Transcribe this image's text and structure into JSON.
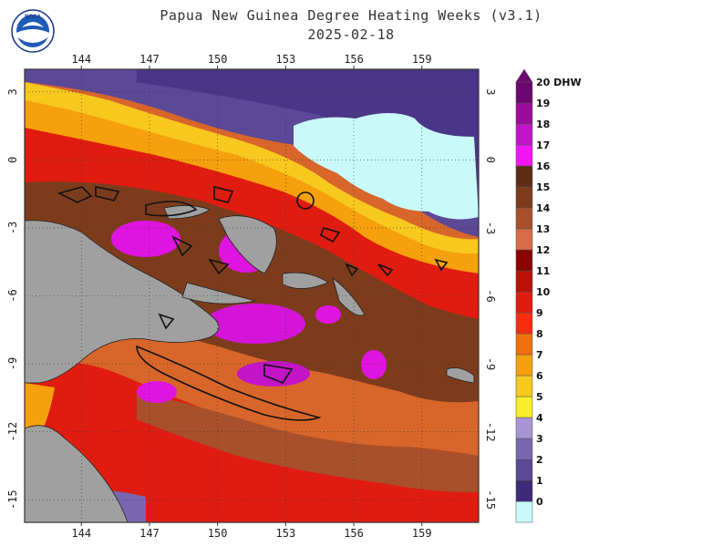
{
  "title_line1": "Papua New Guinea Degree Heating Weeks (v3.1)",
  "title_line2": "2025-02-18",
  "logo_text": "NOAA",
  "lon_ticks": [
    "144",
    "147",
    "150",
    "153",
    "156",
    "159"
  ],
  "lat_ticks": [
    "3",
    "0",
    "-3",
    "-6",
    "-9",
    "-12",
    "-15"
  ],
  "colorbar": {
    "unit": "DHW",
    "labels": [
      "0",
      "1",
      "2",
      "3",
      "4",
      "5",
      "6",
      "7",
      "8",
      "9",
      "10",
      "11",
      "12",
      "13",
      "14",
      "15",
      "16",
      "17",
      "18",
      "19",
      "20 DHW"
    ],
    "colors": [
      "#c8fafa",
      "#3d2a78",
      "#5b4896",
      "#7a66b0",
      "#a894d2",
      "#f5ee28",
      "#f7c81e",
      "#f5a00c",
      "#f07010",
      "#f82c10",
      "#e01c10",
      "#bc1008",
      "#8a0404",
      "#d86c44",
      "#a8502c",
      "#7c3c1c",
      "#5c2c14",
      "#f414f4",
      "#c414c8",
      "#9c0c9c",
      "#6e0670"
    ]
  }
}
